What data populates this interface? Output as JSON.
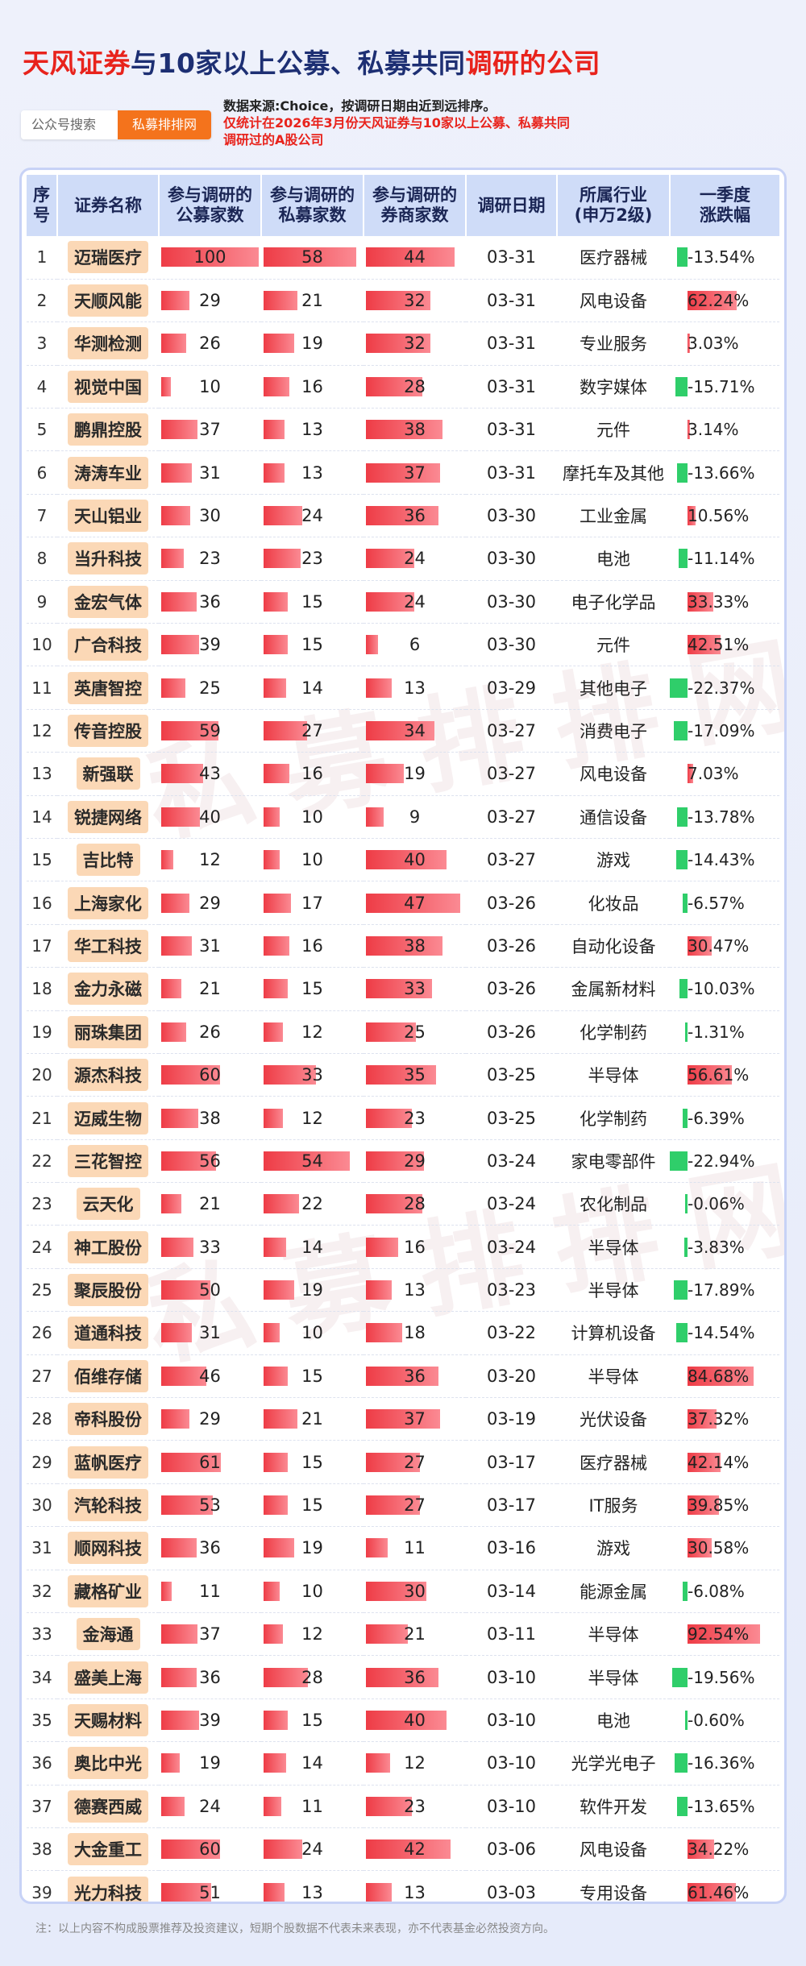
{
  "title": {
    "part1": "天风证券",
    "part2": "与10家以上公募、私募共同",
    "part3": "调研的公司"
  },
  "search": {
    "label": "公众号搜索",
    "button": "私募排排网"
  },
  "notes": {
    "source": "数据来源:Choice，按调研日期由近到远排序。",
    "scope_line1": "仅统计在2026年3月份天风证券与10家以上公募、私募共同",
    "scope_line2": "调研过的A股公司"
  },
  "watermark": "私募排排网",
  "table": {
    "headers": {
      "idx": [
        "序",
        "号"
      ],
      "name": "证券名称",
      "public": [
        "参与调研的",
        "公募家数"
      ],
      "private": [
        "参与调研的",
        "私募家数"
      ],
      "broker": [
        "参与调研的",
        "券商家数"
      ],
      "date": "调研日期",
      "industry": [
        "所属行业",
        "(申万2级)"
      ],
      "change": [
        "一季度",
        "涨跌幅"
      ]
    },
    "rows": [
      {
        "idx": "1",
        "name": "迈瑞医疗",
        "public": 100,
        "private": 58,
        "broker": 44,
        "date": "03-31",
        "industry": "医疗器械",
        "change": "-13.54%",
        "change_value": -13.54
      },
      {
        "idx": "2",
        "name": "天顺风能",
        "public": 29,
        "private": 21,
        "broker": 32,
        "date": "03-31",
        "industry": "风电设备",
        "change": "62.24%",
        "change_value": 62.24
      },
      {
        "idx": "3",
        "name": "华测检测",
        "public": 26,
        "private": 19,
        "broker": 32,
        "date": "03-31",
        "industry": "专业服务",
        "change": "3.03%",
        "change_value": 3.03
      },
      {
        "idx": "4",
        "name": "视觉中国",
        "public": 10,
        "private": 16,
        "broker": 28,
        "date": "03-31",
        "industry": "数字媒体",
        "change": "-15.71%",
        "change_value": -15.71
      },
      {
        "idx": "5",
        "name": "鹏鼎控股",
        "public": 37,
        "private": 13,
        "broker": 38,
        "date": "03-31",
        "industry": "元件",
        "change": "3.14%",
        "change_value": 3.14
      },
      {
        "idx": "6",
        "name": "涛涛车业",
        "public": 31,
        "private": 13,
        "broker": 37,
        "date": "03-31",
        "industry": "摩托车及其他",
        "change": "-13.66%",
        "change_value": -13.66
      },
      {
        "idx": "7",
        "name": "天山铝业",
        "public": 30,
        "private": 24,
        "broker": 36,
        "date": "03-30",
        "industry": "工业金属",
        "change": "10.56%",
        "change_value": 10.56
      },
      {
        "idx": "8",
        "name": "当升科技",
        "public": 23,
        "private": 23,
        "broker": 24,
        "date": "03-30",
        "industry": "电池",
        "change": "-11.14%",
        "change_value": -11.14
      },
      {
        "idx": "9",
        "name": "金宏气体",
        "public": 36,
        "private": 15,
        "broker": 24,
        "date": "03-30",
        "industry": "电子化学品",
        "change": "33.33%",
        "change_value": 33.33
      },
      {
        "idx": "10",
        "name": "广合科技",
        "public": 39,
        "private": 15,
        "broker": 6,
        "date": "03-30",
        "industry": "元件",
        "change": "42.51%",
        "change_value": 42.51
      },
      {
        "idx": "11",
        "name": "英唐智控",
        "public": 25,
        "private": 14,
        "broker": 13,
        "date": "03-29",
        "industry": "其他电子",
        "change": "-22.37%",
        "change_value": -22.37
      },
      {
        "idx": "12",
        "name": "传音控股",
        "public": 59,
        "private": 27,
        "broker": 34,
        "date": "03-27",
        "industry": "消费电子",
        "change": "-17.09%",
        "change_value": -17.09
      },
      {
        "idx": "13",
        "name": "新强联",
        "public": 43,
        "private": 16,
        "broker": 19,
        "date": "03-27",
        "industry": "风电设备",
        "change": "7.03%",
        "change_value": 7.03
      },
      {
        "idx": "14",
        "name": "锐捷网络",
        "public": 40,
        "private": 10,
        "broker": 9,
        "date": "03-27",
        "industry": "通信设备",
        "change": "-13.78%",
        "change_value": -13.78
      },
      {
        "idx": "15",
        "name": "吉比特",
        "public": 12,
        "private": 10,
        "broker": 40,
        "date": "03-27",
        "industry": "游戏",
        "change": "-14.43%",
        "change_value": -14.43
      },
      {
        "idx": "16",
        "name": "上海家化",
        "public": 29,
        "private": 17,
        "broker": 47,
        "date": "03-26",
        "industry": "化妆品",
        "change": "-6.57%",
        "change_value": -6.57
      },
      {
        "idx": "17",
        "name": "华工科技",
        "public": 31,
        "private": 16,
        "broker": 38,
        "date": "03-26",
        "industry": "自动化设备",
        "change": "30.47%",
        "change_value": 30.47
      },
      {
        "idx": "18",
        "name": "金力永磁",
        "public": 21,
        "private": 15,
        "broker": 33,
        "date": "03-26",
        "industry": "金属新材料",
        "change": "-10.03%",
        "change_value": -10.03
      },
      {
        "idx": "19",
        "name": "丽珠集团",
        "public": 26,
        "private": 12,
        "broker": 25,
        "date": "03-26",
        "industry": "化学制药",
        "change": "-1.31%",
        "change_value": -1.31
      },
      {
        "idx": "20",
        "name": "源杰科技",
        "public": 60,
        "private": 33,
        "broker": 35,
        "date": "03-25",
        "industry": "半导体",
        "change": "56.61%",
        "change_value": 56.61
      },
      {
        "idx": "21",
        "name": "迈威生物",
        "public": 38,
        "private": 12,
        "broker": 23,
        "date": "03-25",
        "industry": "化学制药",
        "change": "-6.39%",
        "change_value": -6.39
      },
      {
        "idx": "22",
        "name": "三花智控",
        "public": 56,
        "private": 54,
        "broker": 29,
        "date": "03-24",
        "industry": "家电零部件",
        "change": "-22.94%",
        "change_value": -22.94
      },
      {
        "idx": "23",
        "name": "云天化",
        "public": 21,
        "private": 22,
        "broker": 28,
        "date": "03-24",
        "industry": "农化制品",
        "change": "-0.06%",
        "change_value": -0.06
      },
      {
        "idx": "24",
        "name": "神工股份",
        "public": 33,
        "private": 14,
        "broker": 16,
        "date": "03-24",
        "industry": "半导体",
        "change": "-3.83%",
        "change_value": -3.83
      },
      {
        "idx": "25",
        "name": "聚辰股份",
        "public": 50,
        "private": 19,
        "broker": 13,
        "date": "03-23",
        "industry": "半导体",
        "change": "-17.89%",
        "change_value": -17.89
      },
      {
        "idx": "26",
        "name": "道通科技",
        "public": 31,
        "private": 10,
        "broker": 18,
        "date": "03-22",
        "industry": "计算机设备",
        "change": "-14.54%",
        "change_value": -14.54
      },
      {
        "idx": "27",
        "name": "佰维存储",
        "public": 46,
        "private": 15,
        "broker": 36,
        "date": "03-20",
        "industry": "半导体",
        "change": "84.68%",
        "change_value": 84.68
      },
      {
        "idx": "28",
        "name": "帝科股份",
        "public": 29,
        "private": 21,
        "broker": 37,
        "date": "03-19",
        "industry": "光伏设备",
        "change": "37.32%",
        "change_value": 37.32
      },
      {
        "idx": "29",
        "name": "蓝帆医疗",
        "public": 61,
        "private": 15,
        "broker": 27,
        "date": "03-17",
        "industry": "医疗器械",
        "change": "42.14%",
        "change_value": 42.14
      },
      {
        "idx": "30",
        "name": "汽轮科技",
        "public": 53,
        "private": 15,
        "broker": 27,
        "date": "03-17",
        "industry": "IT服务",
        "change": "39.85%",
        "change_value": 39.85
      },
      {
        "idx": "31",
        "name": "顺网科技",
        "public": 36,
        "private": 19,
        "broker": 11,
        "date": "03-16",
        "industry": "游戏",
        "change": "30.58%",
        "change_value": 30.58
      },
      {
        "idx": "32",
        "name": "藏格矿业",
        "public": 11,
        "private": 10,
        "broker": 30,
        "date": "03-14",
        "industry": "能源金属",
        "change": "-6.08%",
        "change_value": -6.08
      },
      {
        "idx": "33",
        "name": "金海通",
        "public": 37,
        "private": 12,
        "broker": 21,
        "date": "03-11",
        "industry": "半导体",
        "change": "92.54%",
        "change_value": 92.54
      },
      {
        "idx": "34",
        "name": "盛美上海",
        "public": 36,
        "private": 28,
        "broker": 36,
        "date": "03-10",
        "industry": "半导体",
        "change": "-19.56%",
        "change_value": -19.56
      },
      {
        "idx": "35",
        "name": "天赐材料",
        "public": 39,
        "private": 15,
        "broker": 40,
        "date": "03-10",
        "industry": "电池",
        "change": "-0.60%",
        "change_value": -0.6
      },
      {
        "idx": "36",
        "name": "奥比中光",
        "public": 19,
        "private": 14,
        "broker": 12,
        "date": "03-10",
        "industry": "光学光电子",
        "change": "-16.36%",
        "change_value": -16.36
      },
      {
        "idx": "37",
        "name": "德赛西威",
        "public": 24,
        "private": 11,
        "broker": 23,
        "date": "03-10",
        "industry": "软件开发",
        "change": "-13.65%",
        "change_value": -13.65
      },
      {
        "idx": "38",
        "name": "大金重工",
        "public": 60,
        "private": 24,
        "broker": 42,
        "date": "03-06",
        "industry": "风电设备",
        "change": "34.22%",
        "change_value": 34.22
      },
      {
        "idx": "39",
        "name": "光力科技",
        "public": 51,
        "private": 13,
        "broker": 13,
        "date": "03-03",
        "industry": "专用设备",
        "change": "61.46%",
        "change_value": 61.46
      }
    ]
  },
  "footnote": "注：以上内容不构成股票推荐及投资建议，短期个股数据不代表未来表现，亦不代表基金必然投资方向。",
  "colors": {
    "title_red": "#e8231c",
    "title_dark": "#1d2f73",
    "bar_red": "#ee3c46",
    "bar_green": "#2fce6a",
    "name_chip": "#fbd8b6",
    "header_bg": "#cfdcf8",
    "search_button": "#f4731c"
  }
}
